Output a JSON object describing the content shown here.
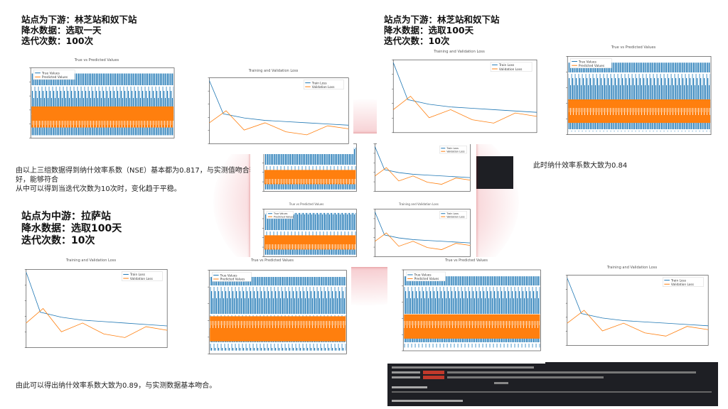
{
  "sections": [
    {
      "lines": [
        "站点为下游：林芝站和奴下站",
        "降水数据：选取一天",
        "迭代次数：100次"
      ]
    },
    {
      "lines": [
        "站点为下游：林芝站和奴下站",
        "降水数据：选取100天",
        "迭代次数：10次"
      ]
    },
    {
      "lines": [
        "站点为中游：拉萨站",
        "降水数据：选取100天",
        "迭代次数：10次"
      ]
    }
  ],
  "notes": [
    "由以上三组数据得到纳什效率系数（NSE）基本都为0.817，与实测值吻合较好，能够符合",
    "从中可以得到当迭代次数为10次时，变化趋于平稳。",
    "此时纳什效率系数大致为0.84",
    "由此可以得出纳什效率系数大致为0.89，与实测数据基本吻合。"
  ],
  "charts": [
    {
      "title": "True vs Predicted Values",
      "legend": [
        "True Values",
        "Predicted Values"
      ]
    },
    {
      "title": "Training and Validation Loss",
      "legend": [
        "Train Loss",
        "Validation Loss"
      ]
    },
    {
      "title": "Training and Validation Loss",
      "legend": [
        "Train Loss",
        "Validation Loss"
      ]
    },
    {
      "title": "True vs Predicted Values",
      "legend": [
        "True Values",
        "Predicted Values"
      ]
    },
    {
      "title": "Training and Validation Loss",
      "legend": [
        "Train Loss",
        "Validation Loss"
      ]
    },
    {
      "title": "True vs Predicted Values",
      "legend": [
        "True Values",
        "Predicted Values"
      ]
    },
    {
      "title": "True vs Predicted Values",
      "legend": [
        "True Values",
        "Predicted Values"
      ]
    },
    {
      "title": "Training and Validation Loss",
      "legend": [
        "Train Loss",
        "Validation Loss"
      ]
    },
    {
      "title": "True vs Predicted Values",
      "legend": [
        "True Values",
        "Predicted Values"
      ]
    },
    {
      "title": "Training and Validation Loss",
      "legend": [
        "Train Loss",
        "Validation Loss"
      ]
    },
    {
      "title": "True vs Predicted Values",
      "legend": [
        "True Values",
        "Predicted Values"
      ]
    },
    {
      "title": "Training and Validation Loss",
      "legend": [
        "Train Loss",
        "Validation Loss"
      ]
    }
  ]
}
